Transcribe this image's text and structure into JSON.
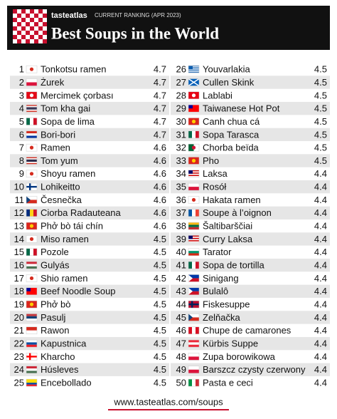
{
  "header": {
    "brand": "tasteatlas",
    "ranking": "CURRENT RANKING (APR 2023)",
    "title": "Best Soups in the World"
  },
  "table": {
    "rows": [
      [
        1,
        "Tonkotsu ramen",
        4.7
      ],
      [
        2,
        "Żurek",
        4.7
      ],
      [
        3,
        "Mercimek çorbası",
        4.7
      ],
      [
        4,
        "Tom kha gai",
        4.7
      ],
      [
        5,
        "Sopa de lima",
        4.7
      ],
      [
        6,
        "Bori-bori",
        4.7
      ],
      [
        7,
        "Ramen",
        4.6
      ],
      [
        8,
        "Tom yum",
        4.6
      ],
      [
        9,
        "Shoyu ramen",
        4.6
      ],
      [
        10,
        "Lohikeitto",
        4.6
      ],
      [
        11,
        "Česnečka",
        4.6
      ],
      [
        12,
        "Ciorba Radauteana",
        4.6
      ],
      [
        13,
        "Phở bò tái chín",
        4.6
      ],
      [
        14,
        "Miso ramen",
        4.5
      ],
      [
        15,
        "Pozole",
        4.5
      ],
      [
        16,
        "Gulyás",
        4.5
      ],
      [
        17,
        "Shio ramen",
        4.5
      ],
      [
        18,
        "Beef Noodle Soup",
        4.5
      ],
      [
        19,
        "Phở bò",
        4.5
      ],
      [
        20,
        "Pasulj",
        4.5
      ],
      [
        21,
        "Rawon",
        4.5
      ],
      [
        22,
        "Kapustnica",
        4.5
      ],
      [
        23,
        "Kharcho",
        4.5
      ],
      [
        24,
        "Húsleves",
        4.5
      ],
      [
        25,
        "Encebollado",
        4.5
      ],
      [
        26,
        "Youvarlakia",
        4.5
      ],
      [
        27,
        "Cullen Skink",
        4.5
      ],
      [
        28,
        "Lablabi",
        4.5
      ],
      [
        29,
        "Taiwanese Hot Pot",
        4.5
      ],
      [
        30,
        "Canh chua cá",
        4.5
      ],
      [
        31,
        "Sopa Tarasca",
        4.5
      ],
      [
        32,
        "Chorba beïda",
        4.5
      ],
      [
        33,
        "Pho",
        4.5
      ],
      [
        34,
        "Laksa",
        4.4
      ],
      [
        35,
        "Rosół",
        4.4
      ],
      [
        36,
        "Hakata ramen",
        4.4
      ],
      [
        37,
        "Soupe à l’oignon",
        4.4
      ],
      [
        38,
        "Šaltibarščiai",
        4.4
      ],
      [
        39,
        "Curry Laksa",
        4.4
      ],
      [
        40,
        "Tarator",
        4.4
      ],
      [
        41,
        "Sopa de tortilla",
        4.4
      ],
      [
        42,
        "Sinigang",
        4.4
      ],
      [
        43,
        "Bulalô",
        4.4
      ],
      [
        44,
        "Fiskesuppe",
        4.4
      ],
      [
        45,
        "Zelňačka",
        4.4
      ],
      [
        46,
        "Chupe de camarones",
        4.4
      ],
      [
        47,
        "Kürbis Suppe",
        4.4
      ],
      [
        48,
        "Zupa borowikowa",
        4.4
      ],
      [
        49,
        "Barszcz czysty czerwony",
        4.4
      ],
      [
        50,
        "Pasta e ceci",
        4.4
      ]
    ]
  },
  "footer": "www.tasteatlas.com/soups"
}
